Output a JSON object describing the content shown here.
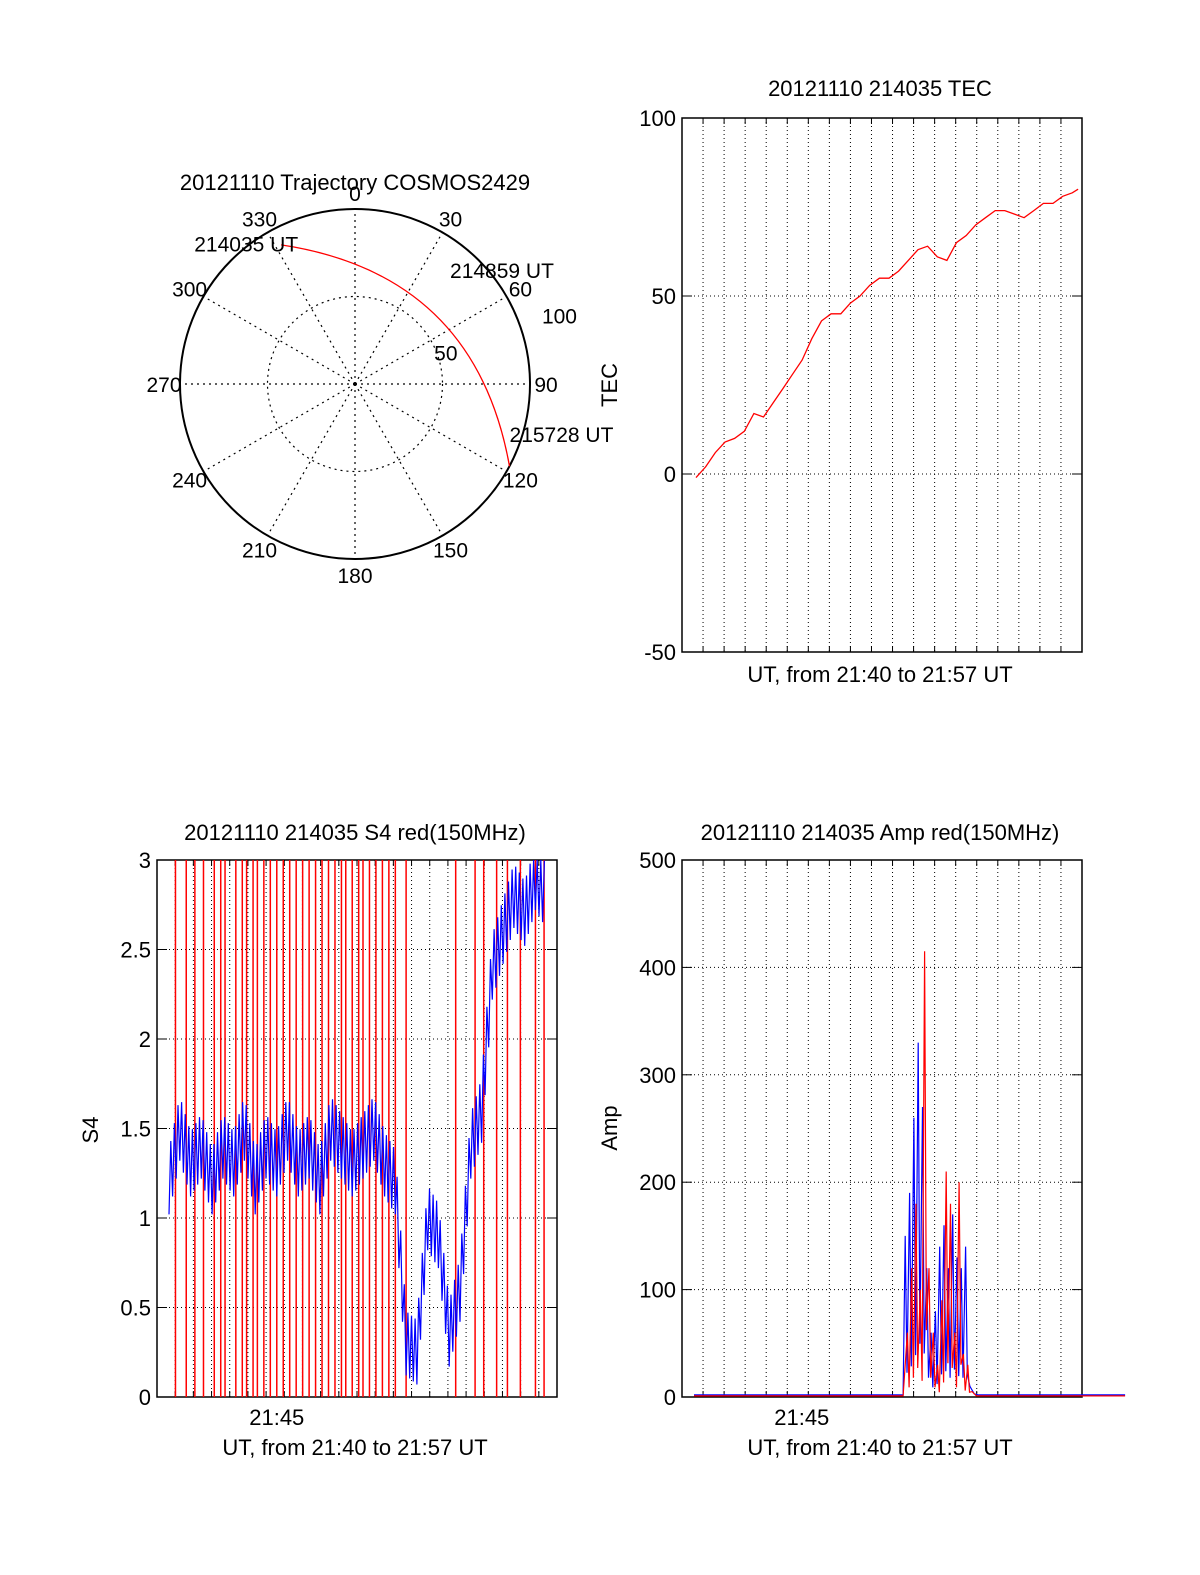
{
  "colors": {
    "red": "#ff0000",
    "blue": "#0000ff",
    "axis": "#000000",
    "grid": "#000000"
  },
  "chart_data": [
    {
      "type": "polar",
      "title": "20121110 Trajectory COSMOS2429",
      "azimuth_labels": [
        "0",
        "30",
        "60",
        "90",
        "120",
        "150",
        "180",
        "210",
        "240",
        "270",
        "300",
        "330"
      ],
      "radial_ticks": [
        {
          "value": 50,
          "label": "50"
        },
        {
          "value": 100,
          "label": "100"
        }
      ],
      "rmax": 100,
      "trajectory": [
        [
          332,
          90
        ],
        [
          345,
          84
        ],
        [
          0,
          80
        ],
        [
          15,
          78
        ],
        [
          30,
          78
        ],
        [
          45,
          80
        ],
        [
          60,
          84
        ],
        [
          75,
          88
        ],
        [
          90,
          92
        ],
        [
          105,
          96
        ],
        [
          118,
          100
        ]
      ],
      "annotations": [
        {
          "text": "214035 UT",
          "az": 330,
          "r": 90
        },
        {
          "text": "214859 UT",
          "az": 61,
          "r": 66
        },
        {
          "text": "215728 UT",
          "az": 118,
          "r": 100
        }
      ],
      "series_color": "red"
    },
    {
      "type": "line",
      "title": "20121110 214035 TEC",
      "ylabel": "TEC",
      "xlabel": "UT, from 21:40 to 21:57 UT",
      "ylim": [
        -50,
        100
      ],
      "yticks": [
        -50,
        0,
        50,
        100
      ],
      "xlim_minutes": [
        21.65,
        22.0
      ],
      "grid": true,
      "series": [
        {
          "color": "red",
          "x": [
            0.0,
            0.5,
            1.0,
            1.5,
            2.0,
            2.5,
            3.0,
            3.5,
            4.0,
            4.5,
            5.0,
            5.5,
            6.0,
            6.5,
            7.0,
            7.5,
            8.0,
            8.5,
            9.0,
            9.5,
            10.0,
            10.5,
            11.0,
            11.5,
            12.0,
            12.5,
            13.0,
            13.5,
            14.0,
            14.5,
            15.0,
            15.5,
            16.0,
            16.5,
            17.0,
            17.5,
            18.0,
            18.5,
            19.0,
            19.5,
            19.8
          ],
          "y": [
            -1,
            2,
            6,
            9,
            10,
            12,
            17,
            16,
            20,
            24,
            28,
            32,
            38,
            43,
            45,
            45,
            48,
            50,
            53,
            55,
            55,
            57,
            60,
            63,
            64,
            61,
            60,
            65,
            67,
            70,
            72,
            74,
            74,
            73,
            72,
            74,
            76,
            76,
            78,
            79,
            80
          ]
        }
      ]
    },
    {
      "type": "line",
      "title": "20121110 214035 S4 red(150MHz)",
      "ylabel": "S4",
      "xlabel": "UT, from 21:40 to 21:57 UT",
      "ylim": [
        0,
        3
      ],
      "yticks": [
        "0",
        "0.5",
        "1",
        "1.5",
        "2",
        "2.5",
        "3"
      ],
      "xtick_labels": [
        {
          "minute": 5,
          "label": "21:45"
        }
      ],
      "grid": true,
      "series": [
        {
          "color": "blue",
          "x": [
            0.0,
            0.5,
            1.0,
            1.5,
            2.0,
            2.5,
            3.0,
            3.5,
            4.0,
            4.5,
            5.0,
            5.5,
            6.0,
            6.5,
            7.0,
            7.5,
            8.0,
            8.5,
            9.0,
            9.5,
            10.0,
            10.5,
            11.0,
            11.5,
            12.0,
            12.5,
            13.0,
            13.5,
            14.0,
            14.5,
            15.0,
            15.5,
            16.0,
            16.5,
            17.0,
            17.5
          ],
          "y": [
            1.2,
            1.5,
            1.3,
            1.4,
            1.2,
            1.4,
            1.3,
            1.5,
            1.2,
            1.4,
            1.3,
            1.5,
            1.3,
            1.4,
            1.2,
            1.5,
            1.4,
            1.3,
            1.4,
            1.5,
            1.3,
            1.2,
            0.3,
            0.25,
            1.0,
            0.9,
            0.35,
            0.6,
            1.4,
            1.6,
            2.4,
            2.6,
            2.8,
            2.7,
            2.9,
            2.8
          ]
        }
      ],
      "red_spikes": [
        0.3,
        0.8,
        1.2,
        1.6,
        2.1,
        2.4,
        2.6,
        3.1,
        3.4,
        3.6,
        3.9,
        4.1,
        4.4,
        4.7,
        5.0,
        5.3,
        5.6,
        5.9,
        6.2,
        6.5,
        6.8,
        7.1,
        7.4,
        7.7,
        8.0,
        8.2,
        8.5,
        8.8,
        9.0,
        9.3,
        9.6,
        9.9,
        10.2,
        10.5,
        11.0,
        13.3,
        14.2,
        14.6,
        15.2,
        15.7,
        16.3,
        17.0,
        17.4
      ]
    },
    {
      "type": "line",
      "title": "20121110 214035 Amp red(150MHz)",
      "ylabel": "Amp",
      "xlabel": "UT, from 21:40 to 21:57 UT",
      "ylim": [
        0,
        500
      ],
      "yticks": [
        "0",
        "100",
        "200",
        "300",
        "400",
        "500"
      ],
      "xtick_labels": [
        {
          "minute": 5,
          "label": "21:45"
        }
      ],
      "grid": true,
      "series": [
        {
          "color": "blue",
          "x": [
            0,
            9.7,
            9.8,
            10.0,
            10.2,
            10.4,
            10.6,
            10.8,
            11.0,
            11.2,
            11.4,
            11.6,
            11.8,
            12.0,
            12.2,
            12.4,
            12.6,
            12.8,
            13.0,
            13.2,
            20
          ],
          "y": [
            2,
            2,
            150,
            190,
            260,
            330,
            270,
            120,
            60,
            80,
            140,
            160,
            120,
            170,
            130,
            120,
            140,
            10,
            3,
            2,
            2
          ]
        },
        {
          "color": "red",
          "x": [
            0,
            9.7,
            9.9,
            10.1,
            10.3,
            10.5,
            10.7,
            10.9,
            11.1,
            11.3,
            11.5,
            11.7,
            11.9,
            12.1,
            12.3,
            12.5,
            12.7,
            12.9,
            13.1,
            20
          ],
          "y": [
            1,
            1,
            60,
            120,
            180,
            100,
            415,
            120,
            60,
            30,
            90,
            210,
            180,
            60,
            200,
            40,
            30,
            5,
            1,
            1
          ]
        }
      ]
    }
  ]
}
